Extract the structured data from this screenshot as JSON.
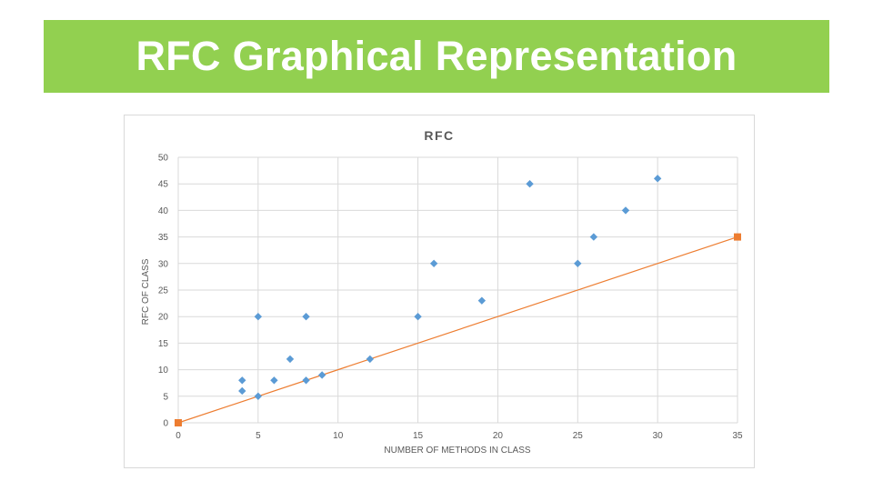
{
  "slide": {
    "title": "RFC Graphical Representation",
    "banner_color": "#92d050"
  },
  "chart_data": {
    "type": "scatter",
    "title": "RFC",
    "xlabel": "NUMBER OF METHODS IN CLASS",
    "ylabel": "RFC OF CLASS",
    "xlim": [
      0,
      35
    ],
    "ylim": [
      0,
      50
    ],
    "x_ticks": [
      "0",
      "5",
      "10",
      "15",
      "20",
      "25",
      "30",
      "35"
    ],
    "y_ticks": [
      "0",
      "5",
      "10",
      "15",
      "20",
      "25",
      "30",
      "35",
      "40",
      "45",
      "50"
    ],
    "grid": true,
    "series": [
      {
        "marker": "diamond",
        "color": "#5b9bd5",
        "points": [
          [
            4,
            8
          ],
          [
            4,
            6
          ],
          [
            5,
            20
          ],
          [
            5,
            5
          ],
          [
            6,
            8
          ],
          [
            7,
            12
          ],
          [
            8,
            20
          ],
          [
            8,
            8
          ],
          [
            9,
            9
          ],
          [
            12,
            12
          ],
          [
            15,
            20
          ],
          [
            16,
            30
          ],
          [
            19,
            23
          ],
          [
            22,
            45
          ],
          [
            25,
            30
          ],
          [
            26,
            35
          ],
          [
            28,
            40
          ],
          [
            30,
            46
          ]
        ]
      },
      {
        "marker": "square",
        "line": true,
        "color": "#ed7d31",
        "points": [
          [
            0,
            0
          ],
          [
            35,
            35
          ]
        ]
      }
    ]
  }
}
